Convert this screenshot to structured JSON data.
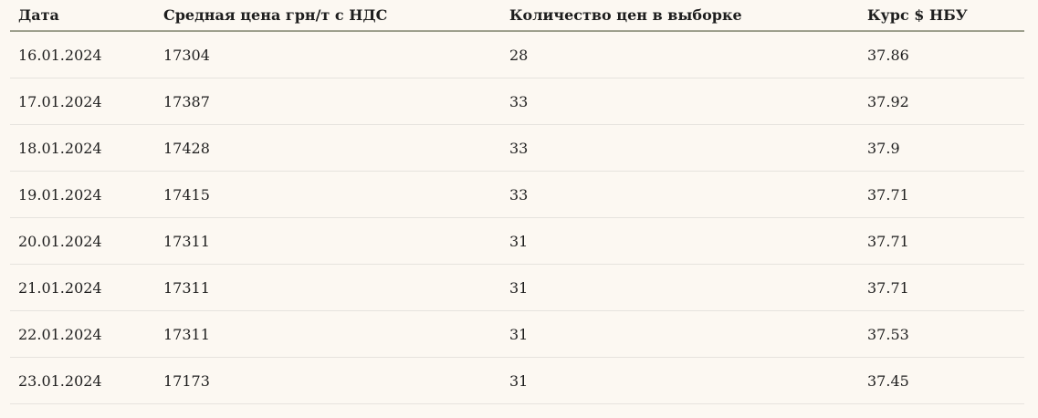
{
  "table": {
    "columns": [
      {
        "label": "Дата"
      },
      {
        "label": "Средная цена грн/т с НДС"
      },
      {
        "label": "Количество цен в выборке"
      },
      {
        "label": "Курс $ НБУ"
      }
    ],
    "rows": [
      [
        "16.01.2024",
        "17304",
        "28",
        "37.86"
      ],
      [
        "17.01.2024",
        "17387",
        "33",
        "37.92"
      ],
      [
        "18.01.2024",
        "17428",
        "33",
        "37.9"
      ],
      [
        "19.01.2024",
        "17415",
        "33",
        "37.71"
      ],
      [
        "20.01.2024",
        "17311",
        "31",
        "37.71"
      ],
      [
        "21.01.2024",
        "17311",
        "31",
        "37.71"
      ],
      [
        "22.01.2024",
        "17311",
        "31",
        "37.53"
      ],
      [
        "23.01.2024",
        "17173",
        "31",
        "37.45"
      ]
    ]
  },
  "colors": {
    "background": "#fcf8f2",
    "text": "#1e1e1e",
    "header_rule": "#9ea08e",
    "row_separator": "#e6e3de"
  }
}
